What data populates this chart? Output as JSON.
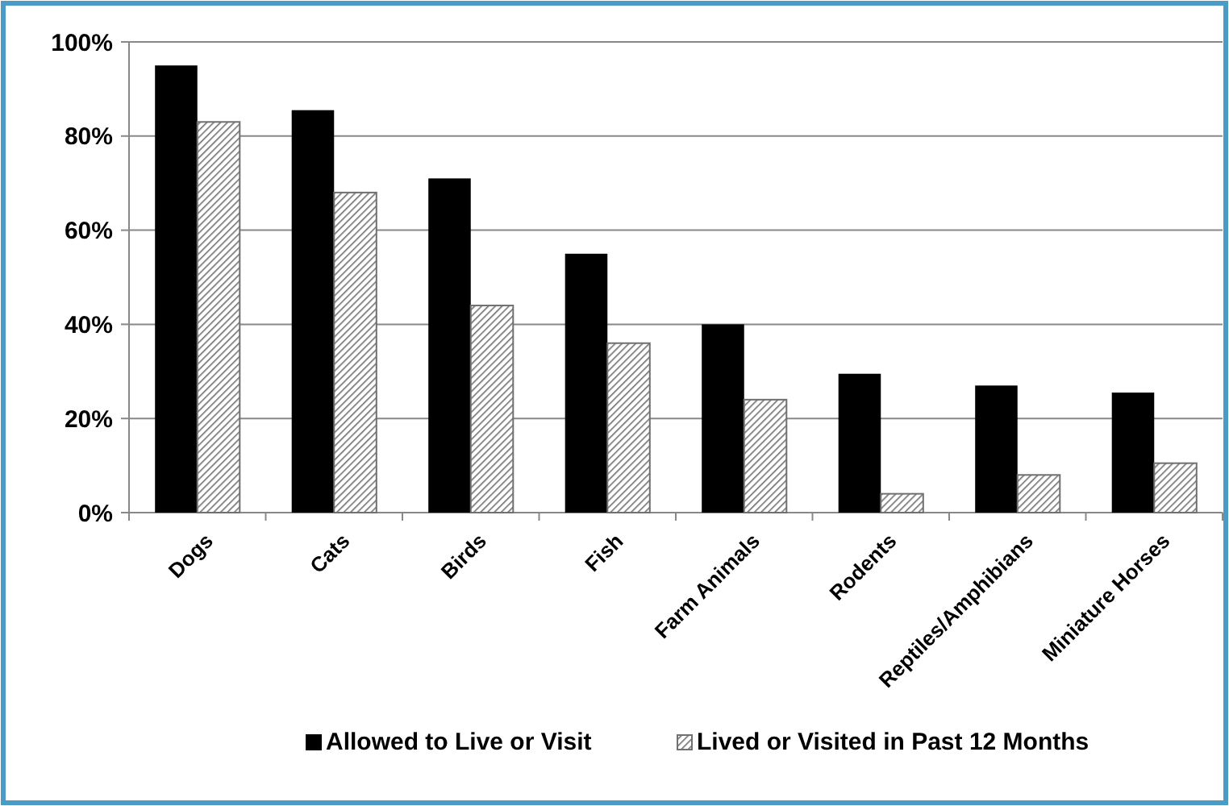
{
  "chart_data": {
    "type": "bar",
    "categories": [
      "Dogs",
      "Cats",
      "Birds",
      "Fish",
      "Farm Animals",
      "Rodents",
      "Reptiles/Amphibians",
      "Miniature Horses"
    ],
    "series": [
      {
        "name": "Allowed to Live or Visit",
        "color": "#000000",
        "values": [
          95,
          85.5,
          71,
          55,
          40,
          29.5,
          27,
          25.5
        ]
      },
      {
        "name": "Lived or Visited in Past 12 Months",
        "color": "#707070",
        "values": [
          83,
          68,
          44,
          36,
          24,
          4,
          8,
          10.5
        ]
      }
    ],
    "ylim": [
      0,
      100
    ],
    "yticks": [
      {
        "value": 0,
        "label": "0%"
      },
      {
        "value": 20,
        "label": "20%"
      },
      {
        "value": 40,
        "label": "40%"
      },
      {
        "value": 60,
        "label": "60%"
      },
      {
        "value": 80,
        "label": "80%"
      },
      {
        "value": 100,
        "label": "100%"
      }
    ],
    "grid": "y",
    "legend": "bottom"
  }
}
